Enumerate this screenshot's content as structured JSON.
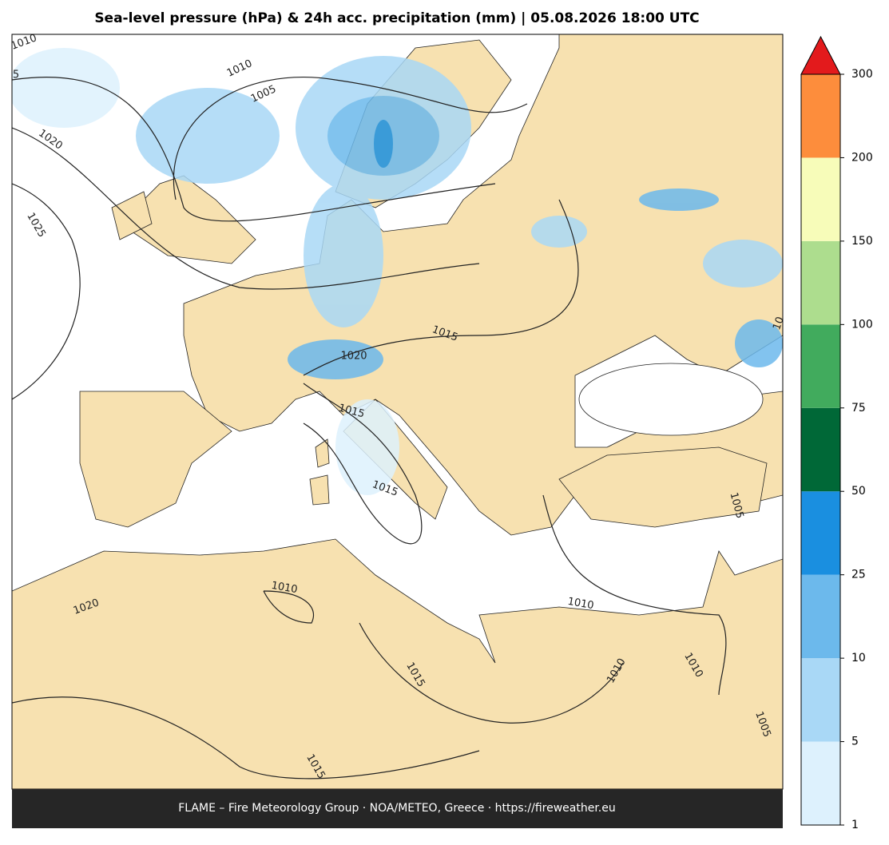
{
  "title": "Sea-level pressure (hPa) & 24h acc. precipitation (mm)  |  05.08.2026 18:00 UTC",
  "footer": "FLAME – Fire Meteorology Group · NOA/METEO, Greece · https://fireweather.eu",
  "colorbar": {
    "ticks": [
      1,
      5,
      10,
      25,
      50,
      75,
      100,
      150,
      200,
      300
    ],
    "colors": [
      "#ddf1fd",
      "#a9d8f6",
      "#6cb9ec",
      "#1a8fe0",
      "#006837",
      "#41ab5d",
      "#addd8e",
      "#f7fcb9",
      "#fd8d3c",
      "#e31a1c"
    ]
  },
  "contour_labels": [
    "1010",
    "5",
    "1020",
    "1025",
    "1010",
    "1005",
    "1015",
    "1020",
    "1015",
    "1015",
    "1010",
    "1020",
    "1015",
    "1010",
    "1005",
    "1010",
    "1010",
    "1005",
    "1015",
    "10"
  ]
}
